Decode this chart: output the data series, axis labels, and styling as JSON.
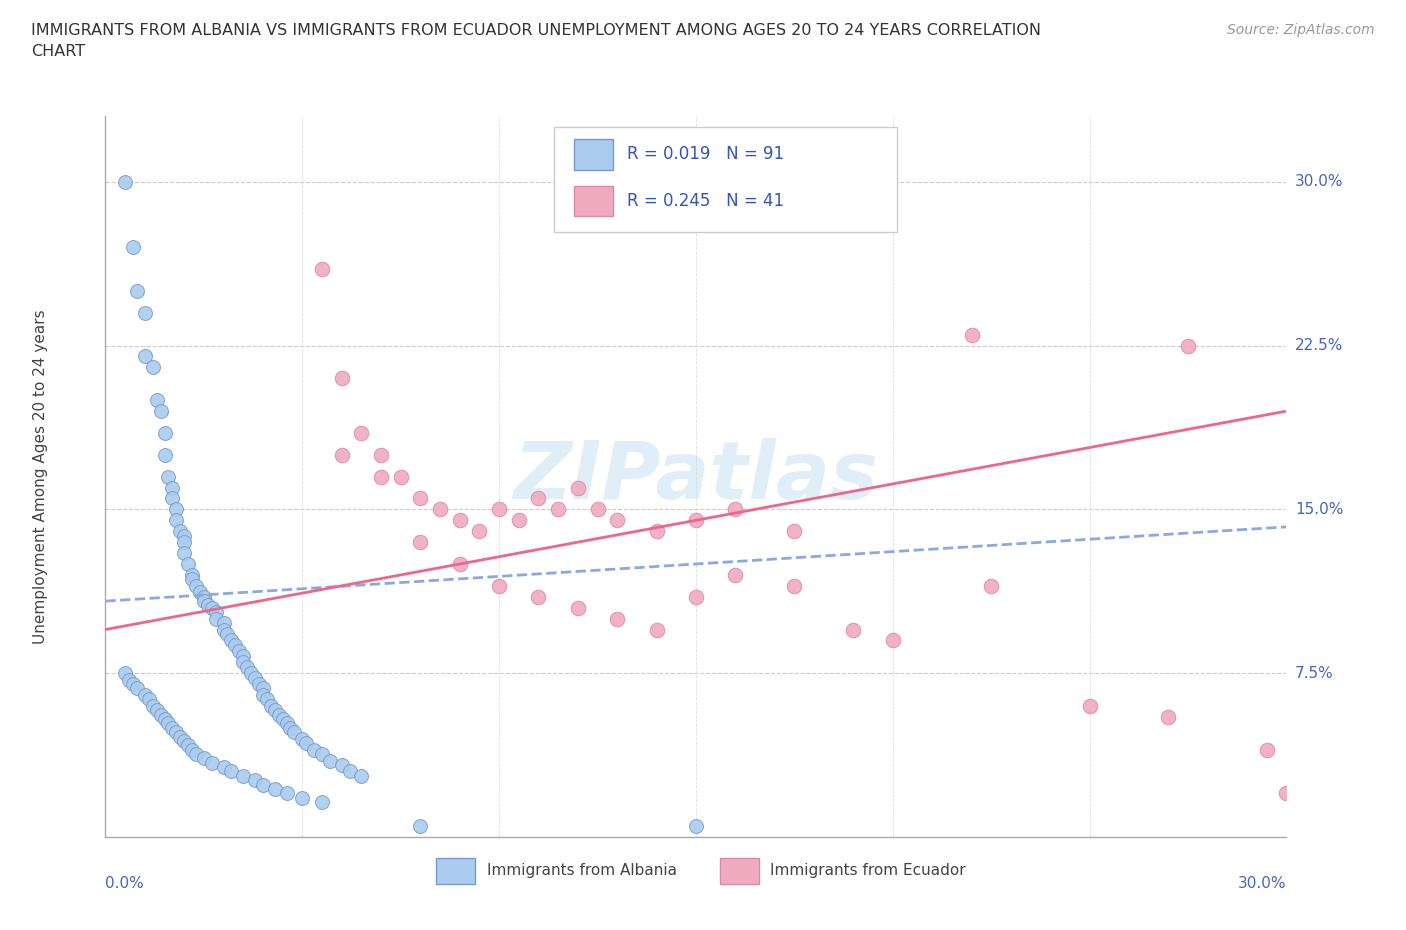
{
  "title_line1": "IMMIGRANTS FROM ALBANIA VS IMMIGRANTS FROM ECUADOR UNEMPLOYMENT AMONG AGES 20 TO 24 YEARS CORRELATION",
  "title_line2": "CHART",
  "source": "Source: ZipAtlas.com",
  "ylabel": "Unemployment Among Ages 20 to 24 years",
  "yticks": [
    0.0,
    0.075,
    0.15,
    0.225,
    0.3
  ],
  "ytick_labels": [
    "",
    "7.5%",
    "15.0%",
    "22.5%",
    "30.0%"
  ],
  "xlim": [
    0.0,
    0.3
  ],
  "ylim": [
    0.0,
    0.33
  ],
  "albania_color": "#aaccee",
  "ecuador_color": "#f0aac0",
  "albania_edge": "#7799cc",
  "ecuador_edge": "#dd88aa",
  "albania_R": 0.019,
  "albania_N": 91,
  "ecuador_R": 0.245,
  "ecuador_N": 41,
  "albania_trend_color": "#88aadd",
  "ecuador_trend_color": "#ee6688",
  "watermark": "ZIPatlas",
  "albania_trend_x0": 0.0,
  "albania_trend_y0": 0.108,
  "albania_trend_x1": 0.3,
  "albania_trend_y1": 0.142,
  "ecuador_trend_x0": 0.0,
  "ecuador_trend_y0": 0.095,
  "ecuador_trend_x1": 0.3,
  "ecuador_trend_y1": 0.195,
  "albania_x": [
    0.005,
    0.007,
    0.008,
    0.01,
    0.01,
    0.012,
    0.013,
    0.014,
    0.015,
    0.015,
    0.016,
    0.017,
    0.017,
    0.018,
    0.018,
    0.019,
    0.02,
    0.02,
    0.02,
    0.021,
    0.022,
    0.022,
    0.023,
    0.024,
    0.025,
    0.025,
    0.026,
    0.027,
    0.028,
    0.028,
    0.03,
    0.03,
    0.031,
    0.032,
    0.033,
    0.034,
    0.035,
    0.035,
    0.036,
    0.037,
    0.038,
    0.039,
    0.04,
    0.04,
    0.041,
    0.042,
    0.043,
    0.044,
    0.045,
    0.046,
    0.047,
    0.048,
    0.05,
    0.051,
    0.053,
    0.055,
    0.057,
    0.06,
    0.062,
    0.065,
    0.005,
    0.006,
    0.007,
    0.008,
    0.01,
    0.011,
    0.012,
    0.013,
    0.014,
    0.015,
    0.016,
    0.017,
    0.018,
    0.019,
    0.02,
    0.021,
    0.022,
    0.023,
    0.025,
    0.027,
    0.03,
    0.032,
    0.035,
    0.038,
    0.04,
    0.043,
    0.046,
    0.05,
    0.055,
    0.08,
    0.15
  ],
  "albania_y": [
    0.3,
    0.27,
    0.25,
    0.24,
    0.22,
    0.215,
    0.2,
    0.195,
    0.185,
    0.175,
    0.165,
    0.16,
    0.155,
    0.15,
    0.145,
    0.14,
    0.138,
    0.135,
    0.13,
    0.125,
    0.12,
    0.118,
    0.115,
    0.112,
    0.11,
    0.108,
    0.106,
    0.105,
    0.103,
    0.1,
    0.098,
    0.095,
    0.093,
    0.09,
    0.088,
    0.085,
    0.083,
    0.08,
    0.078,
    0.075,
    0.073,
    0.07,
    0.068,
    0.065,
    0.063,
    0.06,
    0.058,
    0.056,
    0.054,
    0.052,
    0.05,
    0.048,
    0.045,
    0.043,
    0.04,
    0.038,
    0.035,
    0.033,
    0.03,
    0.028,
    0.075,
    0.072,
    0.07,
    0.068,
    0.065,
    0.063,
    0.06,
    0.058,
    0.056,
    0.054,
    0.052,
    0.05,
    0.048,
    0.046,
    0.044,
    0.042,
    0.04,
    0.038,
    0.036,
    0.034,
    0.032,
    0.03,
    0.028,
    0.026,
    0.024,
    0.022,
    0.02,
    0.018,
    0.016,
    0.005,
    0.005
  ],
  "ecuador_x": [
    0.055,
    0.06,
    0.065,
    0.07,
    0.075,
    0.08,
    0.085,
    0.09,
    0.095,
    0.1,
    0.105,
    0.11,
    0.115,
    0.12,
    0.125,
    0.13,
    0.14,
    0.15,
    0.16,
    0.175,
    0.22,
    0.275,
    0.06,
    0.07,
    0.08,
    0.09,
    0.1,
    0.11,
    0.12,
    0.13,
    0.14,
    0.15,
    0.16,
    0.175,
    0.19,
    0.2,
    0.225,
    0.25,
    0.27,
    0.295,
    0.3
  ],
  "ecuador_y": [
    0.26,
    0.21,
    0.185,
    0.175,
    0.165,
    0.155,
    0.15,
    0.145,
    0.14,
    0.15,
    0.145,
    0.155,
    0.15,
    0.16,
    0.15,
    0.145,
    0.14,
    0.145,
    0.15,
    0.14,
    0.23,
    0.225,
    0.175,
    0.165,
    0.135,
    0.125,
    0.115,
    0.11,
    0.105,
    0.1,
    0.095,
    0.11,
    0.12,
    0.115,
    0.095,
    0.09,
    0.115,
    0.06,
    0.055,
    0.04,
    0.02
  ]
}
